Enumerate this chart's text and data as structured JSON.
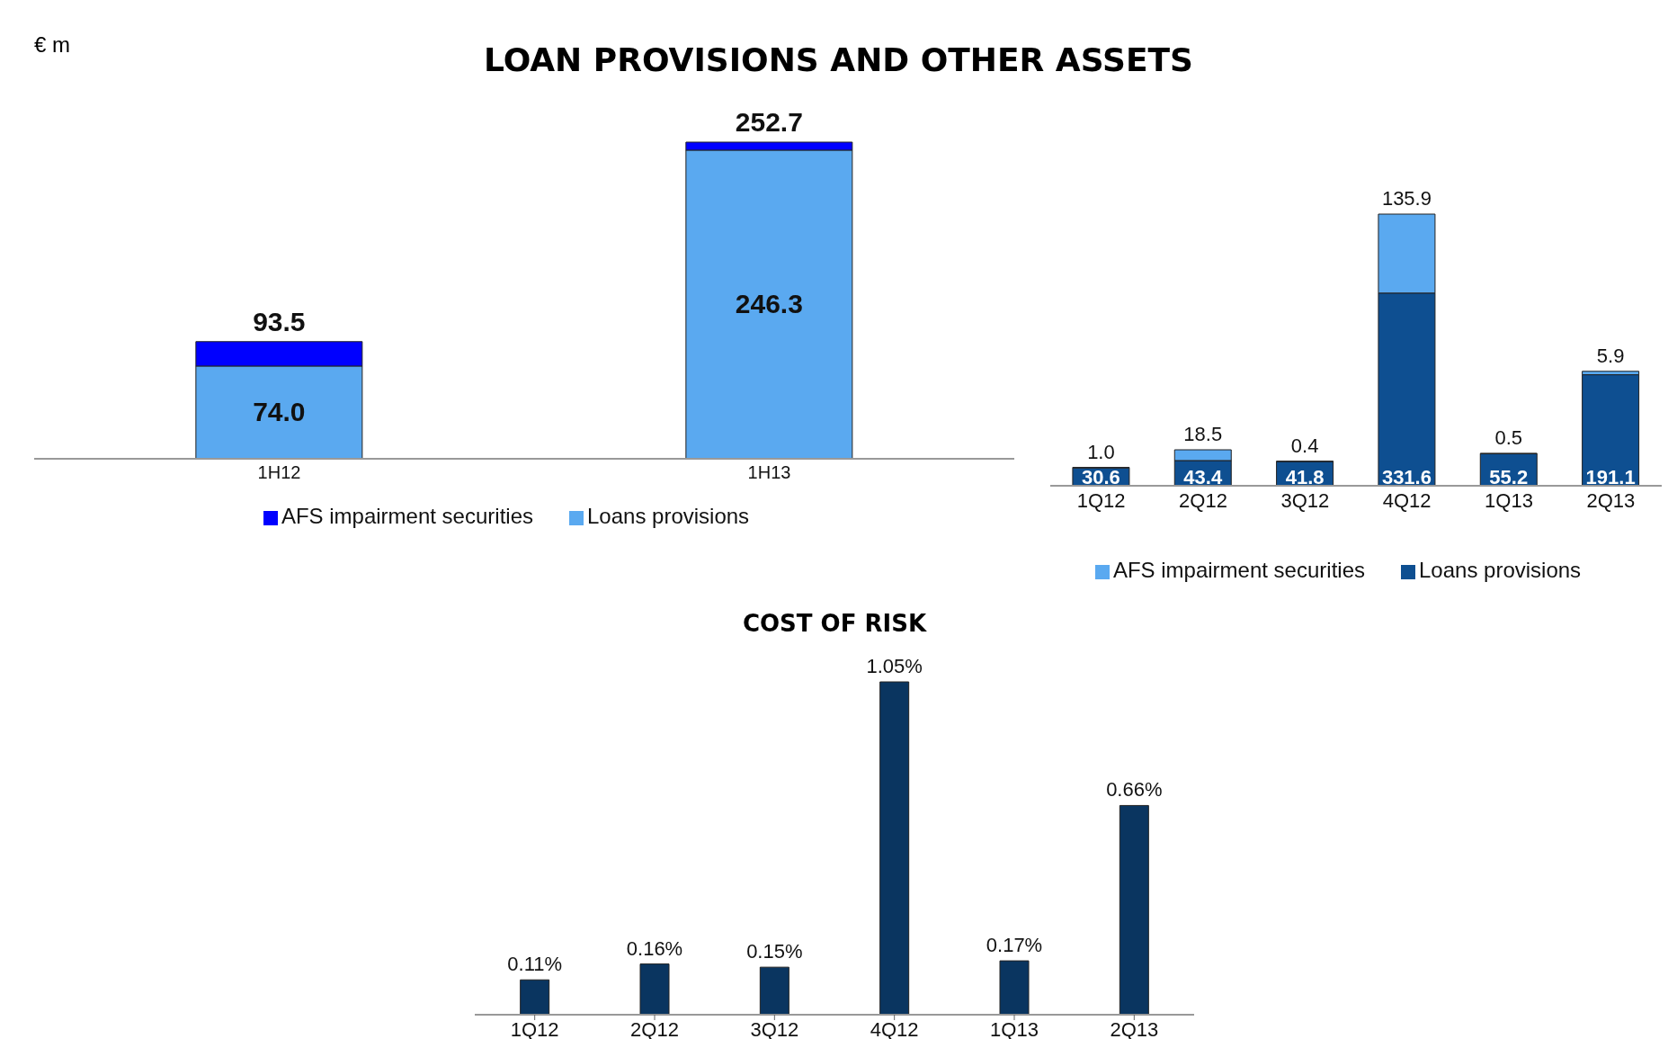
{
  "chart_data": [
    {
      "type": "bar",
      "title": "LOAN PROVISIONS AND OTHER ASSETS",
      "annotations": [
        "€ m"
      ],
      "categories": [
        "1H12",
        "1H13"
      ],
      "stacked": true,
      "legend": "bottom",
      "tick_labels": "x",
      "series": [
        {
          "name": "Loans provisions",
          "color": "#5aa9f0",
          "values": [
            74.0,
            246.3
          ],
          "value_labels": [
            "74.0",
            "246.3"
          ]
        },
        {
          "name": "AFS impairment securities",
          "color": "#0000ff",
          "values": [
            19.5,
            6.4
          ]
        }
      ],
      "totals": [
        "93.5",
        "252.7"
      ]
    },
    {
      "type": "bar",
      "categories": [
        "1Q12",
        "2Q12",
        "3Q12",
        "4Q12",
        "1Q13",
        "2Q13"
      ],
      "stacked": true,
      "legend": "bottom",
      "tick_labels": "x",
      "series": [
        {
          "name": "Loans provisions",
          "color": "#0e4f91",
          "values": [
            30.6,
            43.4,
            41.8,
            331.6,
            55.2,
            191.1
          ],
          "value_labels": [
            "30.6",
            "43.4",
            "41.8",
            "331.6",
            "55.2",
            "191.1"
          ]
        },
        {
          "name": "AFS impairment securities",
          "color": "#5aa9f0",
          "values": [
            1.0,
            18.5,
            0.4,
            135.9,
            0.5,
            5.9
          ],
          "value_labels": [
            "1.0",
            "18.5",
            "0.4",
            "135.9",
            "0.5",
            "5.9"
          ]
        }
      ]
    },
    {
      "type": "bar",
      "title": "COST OF RISK",
      "categories": [
        "1Q12",
        "2Q12",
        "3Q12",
        "4Q12",
        "1Q13",
        "2Q13"
      ],
      "tick_labels": "x",
      "series": [
        {
          "color": "#0a3560",
          "values": [
            0.11,
            0.16,
            0.15,
            1.05,
            0.17,
            0.66
          ],
          "value_labels": [
            "0.11%",
            "0.16%",
            "0.15%",
            "1.05%",
            "0.17%",
            "0.66%"
          ]
        }
      ]
    }
  ]
}
